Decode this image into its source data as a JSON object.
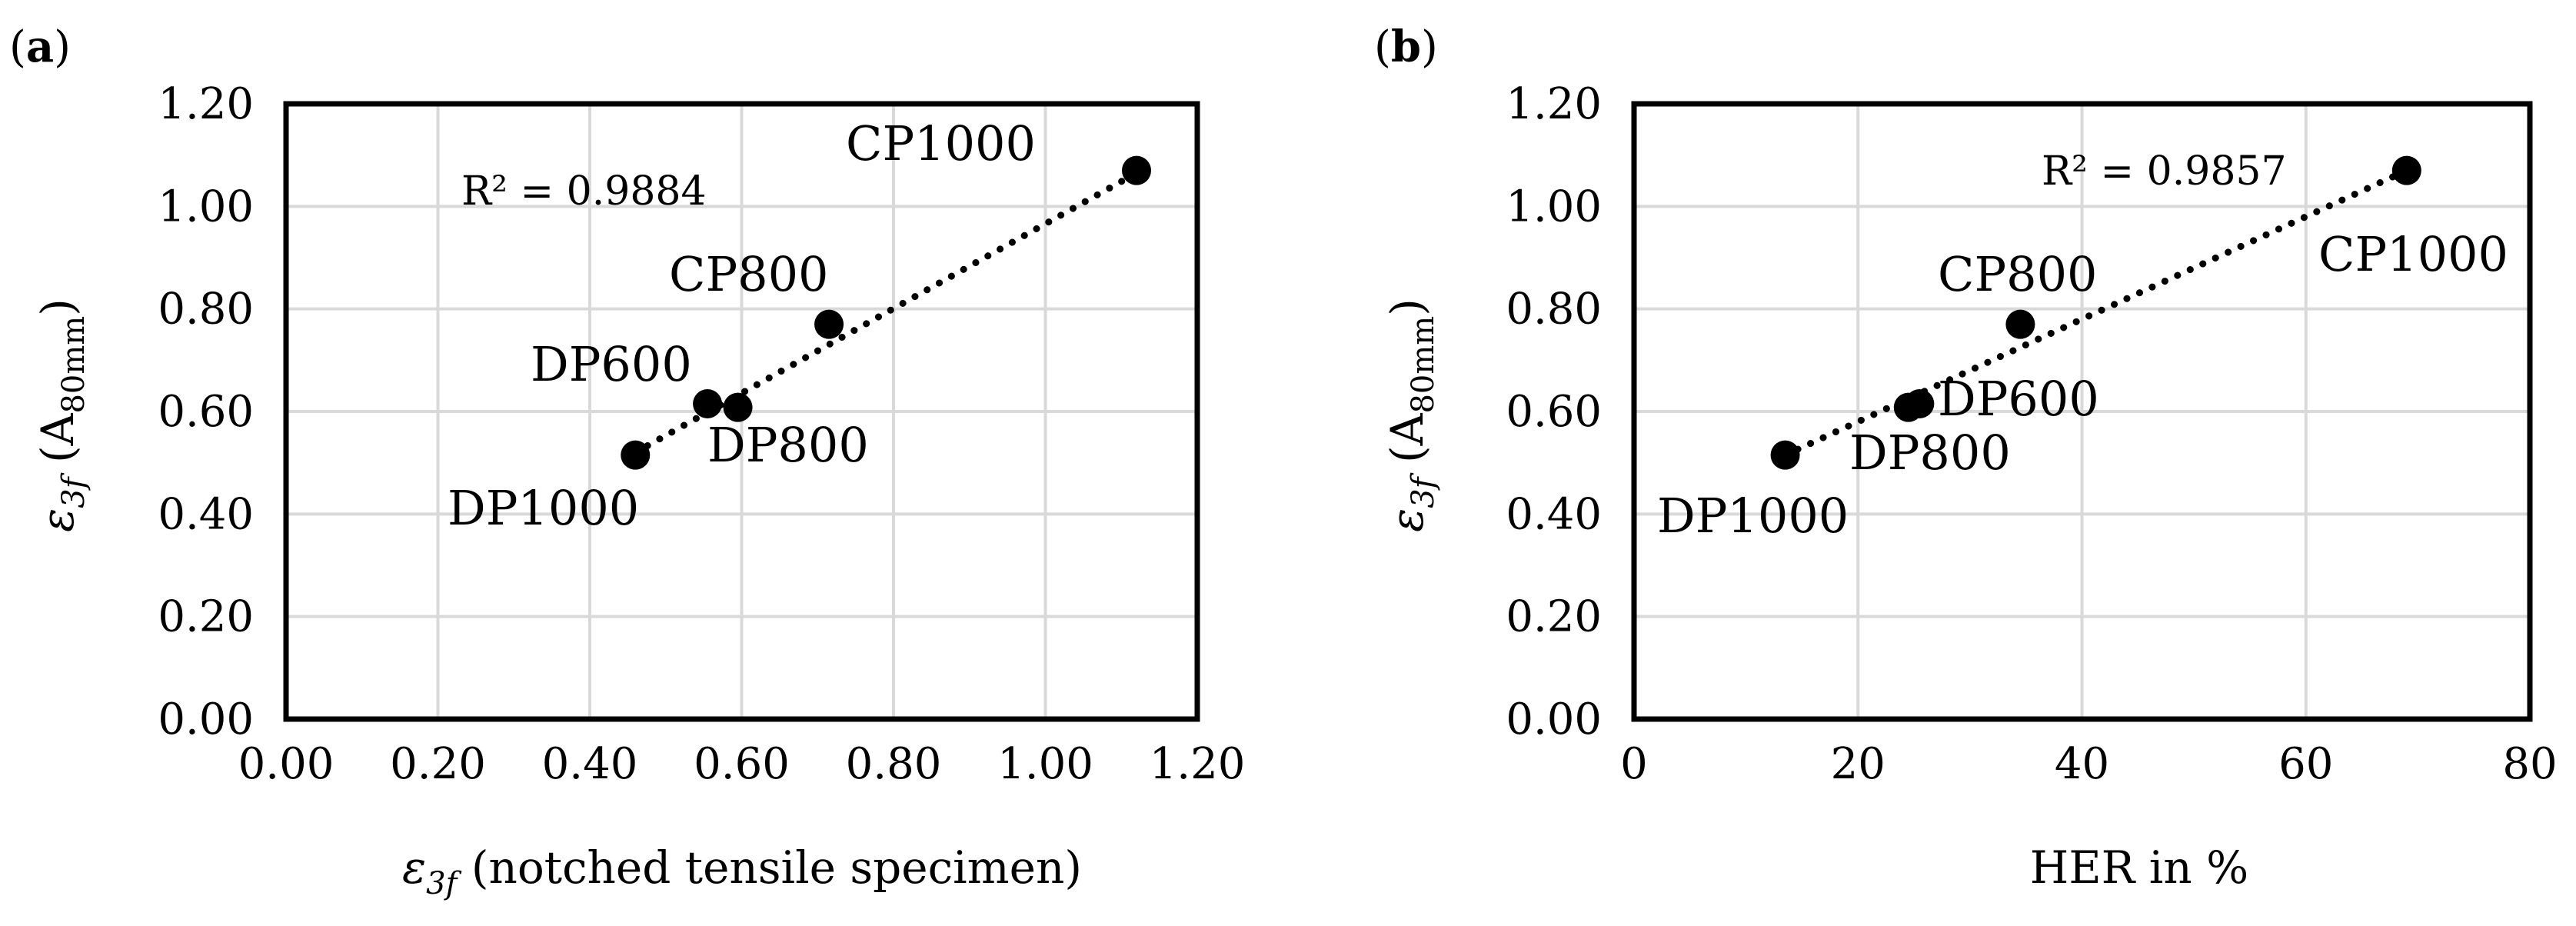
{
  "chart_data": [
    {
      "type": "scatter",
      "panel": "(a)",
      "panel_letter": "a",
      "xlabel_symbol": "ε3f",
      "xlabel_sym_base": "ε",
      "xlabel_sym_sub": "3f",
      "xlabel_rest": "(notched tensile specimen)",
      "ylabel_sym_base": "ε",
      "ylabel_sym_sub": "3f",
      "ylabel_unit_base": "A",
      "ylabel_unit_sub": "80mm",
      "xlim": [
        0,
        1.2
      ],
      "ylim": [
        0,
        1.2
      ],
      "xticks": [
        "0.00",
        "0.20",
        "0.40",
        "0.60",
        "0.80",
        "1.00",
        "1.20"
      ],
      "yticks": [
        "0.00",
        "0.20",
        "0.40",
        "0.60",
        "0.80",
        "1.00",
        "1.20"
      ],
      "points": [
        {
          "label": "DP1000",
          "x": 0.46,
          "y": 0.515
        },
        {
          "label": "DP600",
          "x": 0.555,
          "y": 0.615
        },
        {
          "label": "DP800",
          "x": 0.595,
          "y": 0.608
        },
        {
          "label": "CP800",
          "x": 0.715,
          "y": 0.77
        },
        {
          "label": "CP1000",
          "x": 1.12,
          "y": 1.07
        }
      ],
      "trendline": {
        "x": [
          0.46,
          1.12
        ],
        "y": [
          0.52,
          1.065
        ]
      },
      "r2_text": "R² = 0.9884"
    },
    {
      "type": "scatter",
      "panel": "(b)",
      "panel_letter": "b",
      "xlabel": "HER in %",
      "ylabel_sym_base": "ε",
      "ylabel_sym_sub": "3f",
      "ylabel_unit_base": "A",
      "ylabel_unit_sub": "80mm",
      "xlim": [
        0,
        80
      ],
      "ylim": [
        0,
        1.2
      ],
      "xticks": [
        "0",
        "20",
        "40",
        "60",
        "80"
      ],
      "yticks": [
        "0.00",
        "0.20",
        "0.40",
        "0.60",
        "0.80",
        "1.00",
        "1.20"
      ],
      "points": [
        {
          "label": "DP1000",
          "x": 13.5,
          "y": 0.515
        },
        {
          "label": "DP800",
          "x": 24.5,
          "y": 0.608
        },
        {
          "label": "DP600",
          "x": 25.5,
          "y": 0.615
        },
        {
          "label": "CP800",
          "x": 34.5,
          "y": 0.77
        },
        {
          "label": "CP1000",
          "x": 69,
          "y": 1.07
        }
      ],
      "trendline": {
        "x": [
          13.5,
          69
        ],
        "y": [
          0.515,
          1.07
        ]
      },
      "r2_text": "R² = 0.9857"
    }
  ]
}
